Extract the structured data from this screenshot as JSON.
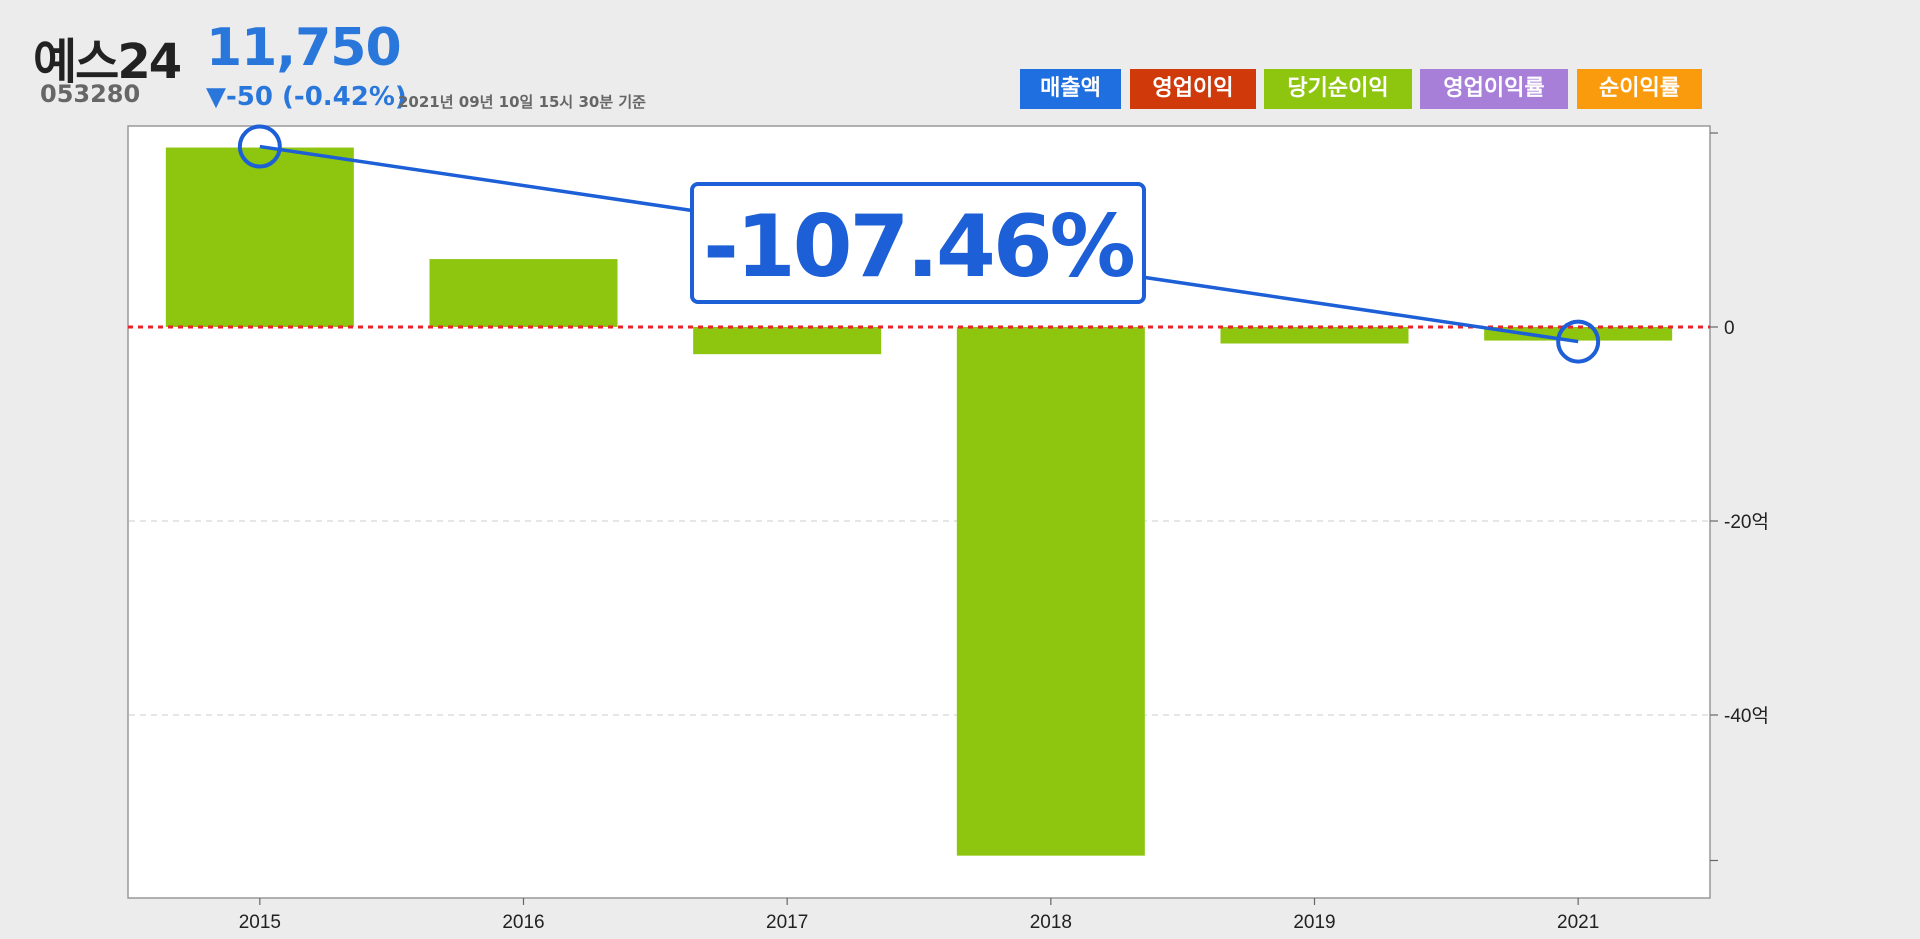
{
  "header": {
    "company": "예스24",
    "code": "053280",
    "price": "11,750",
    "change": "▼-50 (-0.42%)",
    "timestamp": "2021년 09년 10일 15시 30분 기준"
  },
  "legend": [
    {
      "label": "매출액",
      "color": "#1f6fe0"
    },
    {
      "label": "영업이익",
      "color": "#d03a0a"
    },
    {
      "label": "당기순이익",
      "color": "#8dc50f"
    },
    {
      "label": "영업이익률",
      "color": "#a77fd9"
    },
    {
      "label": "순이익률",
      "color": "#fa9b0e"
    }
  ],
  "callout": {
    "text": "-107.46%",
    "color": "#1c5fd6"
  },
  "chart_data": {
    "type": "bar",
    "categories": [
      "2015",
      "2016",
      "2017",
      "2018",
      "2019",
      "2021"
    ],
    "series": [
      {
        "name": "당기순이익",
        "values": [
          18.5,
          7,
          -2.8,
          -54.5,
          -1.7,
          -1.4
        ],
        "color": "#8dc50f"
      }
    ],
    "ylim": [
      -55,
      20
    ],
    "yticks": [
      {
        "value": 20,
        "label": ""
      },
      {
        "value": 0,
        "label": "0"
      },
      {
        "value": -20,
        "label": "-20억"
      },
      {
        "value": -40,
        "label": "-40억"
      },
      {
        "value": -55,
        "label": ""
      }
    ],
    "zero_line_color": "#e8232a",
    "trend_markers": [
      {
        "category": "2015",
        "at": "top"
      },
      {
        "category": "2021",
        "at": "bottom"
      }
    ]
  }
}
